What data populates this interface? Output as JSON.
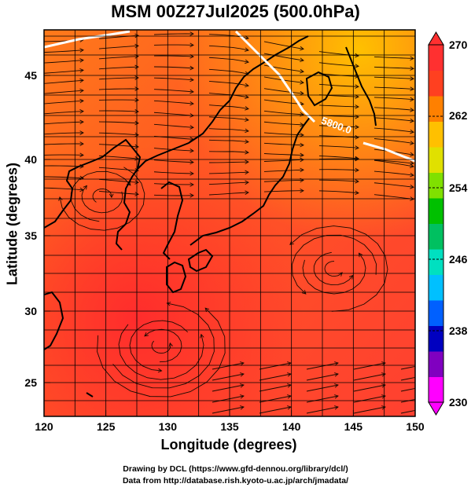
{
  "title": "MSM 00Z27Jul2025 (500.0hPa)",
  "x_axis": {
    "label": "Longitude (degrees)",
    "ticks": [
      "120",
      "125",
      "130",
      "135",
      "140",
      "145",
      "150"
    ]
  },
  "y_axis": {
    "label": "Latitude  (degrees)",
    "ticks": [
      "45",
      "40",
      "35",
      "30",
      "25"
    ]
  },
  "colorbar": {
    "ticks": [
      "270",
      "262",
      "254",
      "246",
      "238",
      "230"
    ],
    "colors": [
      "#ff00ff",
      "#8000c0",
      "#0000c0",
      "#0060ff",
      "#00c0ff",
      "#00e0c0",
      "#00c060",
      "#00c000",
      "#80e000",
      "#e0e000",
      "#ffc000",
      "#ff8000",
      "#ff4020",
      "#ff3030"
    ]
  },
  "contour": {
    "label": "5800.0"
  },
  "credits": {
    "line1": "Drawing by DCL (https://www.gfd-dennou.org/library/dcl/)",
    "line2": "Data from http://database.rish.kyoto-u.ac.jp/arch/jmadata/"
  }
}
